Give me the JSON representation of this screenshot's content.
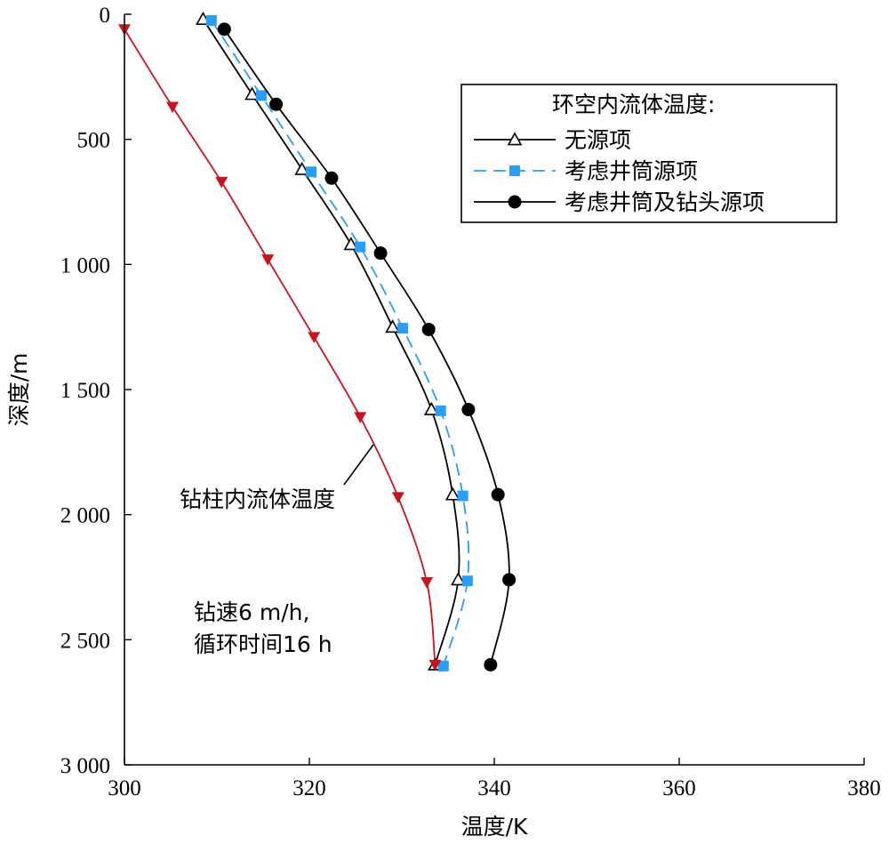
{
  "chart_data": {
    "type": "line",
    "xlabel": "温度/K",
    "ylabel": "深度/m",
    "xlim": [
      300,
      380
    ],
    "ylim": [
      0,
      3000
    ],
    "y_inverted": true,
    "grid": false,
    "x_ticks": [
      300,
      320,
      340,
      360,
      380
    ],
    "x_tick_labels": [
      "300",
      "320",
      "340",
      "360",
      "380"
    ],
    "y_ticks": [
      0,
      500,
      1000,
      1500,
      2000,
      2500,
      3000
    ],
    "y_tick_labels": [
      "0",
      "500",
      "1 000",
      "1 500",
      "2 000",
      "2 500",
      "3 000"
    ],
    "legend": {
      "title": "环空内流体温度:",
      "position": "top-right"
    },
    "series": [
      {
        "name": "无源项",
        "color": "#000000",
        "line_style": "solid",
        "marker": "open-triangle-up",
        "points": [
          [
            308.5,
            20
          ],
          [
            313.8,
            320
          ],
          [
            319.2,
            620
          ],
          [
            324.5,
            920
          ],
          [
            329.0,
            1250
          ],
          [
            333.2,
            1580
          ],
          [
            335.5,
            1920
          ],
          [
            336.1,
            2260
          ],
          [
            333.6,
            2600
          ]
        ]
      },
      {
        "name": "考虑井筒源项",
        "color": "#2a9df4",
        "line_style": "dashed",
        "marker": "filled-square",
        "points": [
          [
            309.4,
            25
          ],
          [
            314.8,
            325
          ],
          [
            320.2,
            630
          ],
          [
            325.5,
            930
          ],
          [
            330.1,
            1255
          ],
          [
            334.2,
            1585
          ],
          [
            336.6,
            1925
          ],
          [
            337.1,
            2265
          ],
          [
            334.5,
            2605
          ]
        ]
      },
      {
        "name": "考虑井筒及钻头源项",
        "color": "#000000",
        "line_style": "solid",
        "marker": "filled-circle",
        "points": [
          [
            310.8,
            60
          ],
          [
            316.4,
            360
          ],
          [
            322.4,
            655
          ],
          [
            327.7,
            955
          ],
          [
            332.9,
            1260
          ],
          [
            337.2,
            1580
          ],
          [
            340.4,
            1920
          ],
          [
            341.6,
            2260
          ],
          [
            339.6,
            2600
          ]
        ]
      },
      {
        "name": "钻柱内流体温度",
        "color": "#c8141e",
        "line_style": "solid",
        "marker": "filled-triangle-down",
        "legend": false,
        "points": [
          [
            300.0,
            60
          ],
          [
            305.2,
            370
          ],
          [
            310.5,
            670
          ],
          [
            315.5,
            980
          ],
          [
            320.5,
            1290
          ],
          [
            325.5,
            1610
          ],
          [
            329.6,
            1930
          ],
          [
            332.7,
            2270
          ],
          [
            333.6,
            2600
          ]
        ]
      }
    ],
    "annotations": [
      {
        "id": "drill-string-label",
        "text": "钻柱内流体温度"
      },
      {
        "id": "condition-line1",
        "text": "钻速6 m/h,"
      },
      {
        "id": "condition-line2",
        "text": "循环时间16 h"
      }
    ]
  }
}
